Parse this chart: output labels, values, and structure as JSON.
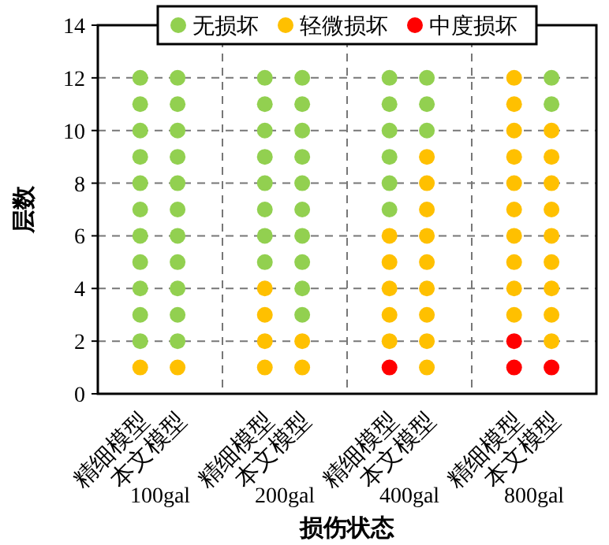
{
  "chart_data": {
    "type": "scatter",
    "xlabel": "损伤状态",
    "ylabel": "层数",
    "categories": [
      "精细模型",
      "本文模型",
      "精细模型",
      "本文模型",
      "精细模型",
      "本文模型",
      "精细模型",
      "本文模型"
    ],
    "annotations": [
      "100gal",
      "200gal",
      "400gal",
      "800gal"
    ],
    "ylim": [
      0,
      14
    ],
    "yticks": [
      0,
      2,
      4,
      6,
      8,
      10,
      12,
      14
    ],
    "grid": true,
    "legend": "top",
    "marker": "circle",
    "series": [
      {
        "name": "无损坏",
        "color": "#92d050",
        "values": [
          null,
          null,
          null,
          null,
          null,
          null,
          null,
          null
        ]
      },
      {
        "name": "轻微损坏",
        "color": "#ffc000",
        "values": [
          null,
          null,
          null,
          null,
          null,
          null,
          null,
          null
        ]
      },
      {
        "name": "中度损坏",
        "color": "#ff0000",
        "values": [
          null,
          null,
          null,
          null,
          null,
          null,
          null,
          null
        ]
      },
      {
        "values": [
          1,
          1,
          1,
          1,
          1,
          1,
          1,
          1
        ],
        "colors": [
          "#ffc000",
          "#ffc000",
          "#ffc000",
          "#ffc000",
          "#ff0000",
          "#ffc000",
          "#ff0000",
          "#ff0000"
        ]
      },
      {
        "values": [
          2,
          2,
          2,
          2,
          2,
          2,
          2,
          2
        ],
        "colors": [
          "#92d050",
          "#92d050",
          "#ffc000",
          "#ffc000",
          "#ffc000",
          "#ffc000",
          "#ff0000",
          "#ffc000"
        ]
      },
      {
        "values": [
          3,
          3,
          3,
          3,
          3,
          3,
          3,
          3
        ],
        "colors": [
          "#92d050",
          "#92d050",
          "#ffc000",
          "#92d050",
          "#ffc000",
          "#ffc000",
          "#ffc000",
          "#ffc000"
        ]
      },
      {
        "values": [
          4,
          4,
          4,
          4,
          4,
          4,
          4,
          4
        ],
        "colors": [
          "#92d050",
          "#92d050",
          "#ffc000",
          "#92d050",
          "#ffc000",
          "#ffc000",
          "#ffc000",
          "#ffc000"
        ]
      },
      {
        "values": [
          5,
          5,
          5,
          5,
          5,
          5,
          5,
          5
        ],
        "colors": [
          "#92d050",
          "#92d050",
          "#92d050",
          "#92d050",
          "#ffc000",
          "#ffc000",
          "#ffc000",
          "#ffc000"
        ]
      },
      {
        "values": [
          6,
          6,
          6,
          6,
          6,
          6,
          6,
          6
        ],
        "colors": [
          "#92d050",
          "#92d050",
          "#92d050",
          "#92d050",
          "#ffc000",
          "#ffc000",
          "#ffc000",
          "#ffc000"
        ]
      },
      {
        "values": [
          7,
          7,
          7,
          7,
          7,
          7,
          7,
          7
        ],
        "colors": [
          "#92d050",
          "#92d050",
          "#92d050",
          "#92d050",
          "#92d050",
          "#ffc000",
          "#ffc000",
          "#ffc000"
        ]
      },
      {
        "values": [
          8,
          8,
          8,
          8,
          8,
          8,
          8,
          8
        ],
        "colors": [
          "#92d050",
          "#92d050",
          "#92d050",
          "#92d050",
          "#92d050",
          "#ffc000",
          "#ffc000",
          "#ffc000"
        ]
      },
      {
        "values": [
          9,
          9,
          9,
          9,
          9,
          9,
          9,
          9
        ],
        "colors": [
          "#92d050",
          "#92d050",
          "#92d050",
          "#92d050",
          "#92d050",
          "#ffc000",
          "#ffc000",
          "#ffc000"
        ]
      },
      {
        "values": [
          10,
          10,
          10,
          10,
          10,
          10,
          10,
          10
        ],
        "colors": [
          "#92d050",
          "#92d050",
          "#92d050",
          "#92d050",
          "#92d050",
          "#92d050",
          "#ffc000",
          "#ffc000"
        ]
      },
      {
        "values": [
          11,
          11,
          11,
          11,
          11,
          11,
          11,
          11
        ],
        "colors": [
          "#92d050",
          "#92d050",
          "#92d050",
          "#92d050",
          "#92d050",
          "#92d050",
          "#ffc000",
          "#92d050"
        ]
      },
      {
        "values": [
          12,
          12,
          12,
          12,
          12,
          12,
          12,
          12
        ],
        "colors": [
          "#92d050",
          "#92d050",
          "#92d050",
          "#92d050",
          "#92d050",
          "#92d050",
          "#ffc000",
          "#92d050"
        ]
      }
    ]
  }
}
